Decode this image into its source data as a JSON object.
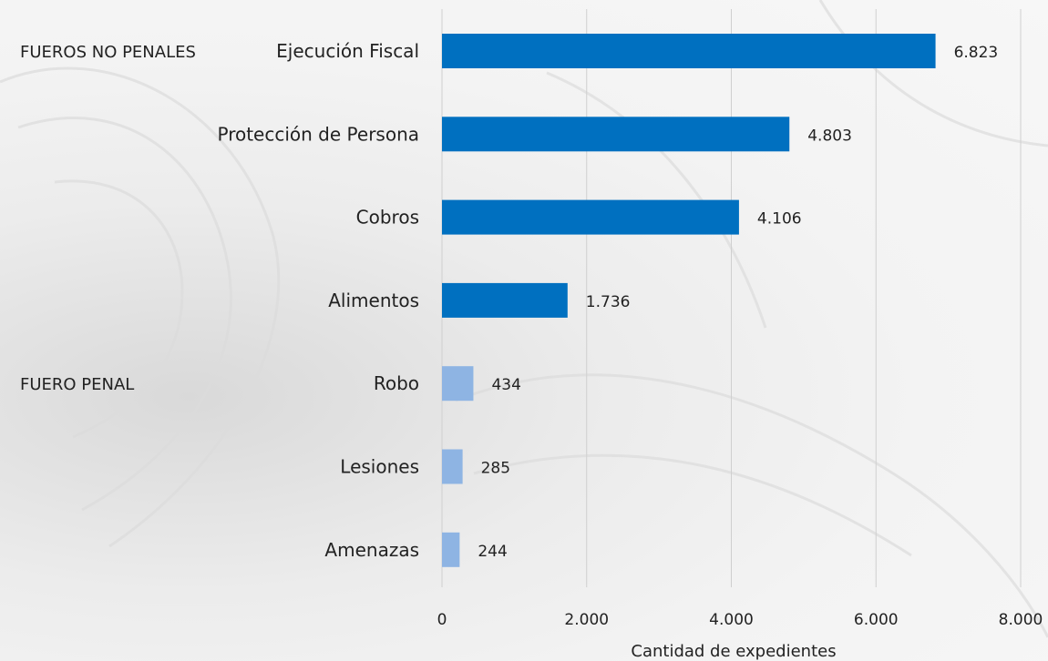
{
  "colors": {
    "no_penal": "#0070C0",
    "penal": "#8EB4E3",
    "grid": "#cfcfcf",
    "text": "#222222"
  },
  "chart_data": {
    "type": "bar",
    "orientation": "horizontal",
    "categories": [
      "Ejecución Fiscal",
      "Protección de Persona",
      "Cobros",
      "Alimentos",
      "Robo",
      "Lesiones",
      "Amenazas"
    ],
    "values": [
      6823,
      4803,
      4106,
      1736,
      434,
      285,
      244
    ],
    "value_labels": [
      "6.823",
      "4.803",
      "4.106",
      "1.736",
      "434",
      "285",
      "244"
    ],
    "groups": [
      {
        "label": "FUEROS NO PENALES",
        "categories": [
          "Ejecución Fiscal",
          "Protección de Persona",
          "Cobros",
          "Alimentos"
        ]
      },
      {
        "label": "FUERO PENAL",
        "categories": [
          "Robo",
          "Lesiones",
          "Amenazas"
        ]
      }
    ],
    "xlim": [
      0,
      8000
    ],
    "xticks": [
      0,
      2000,
      4000,
      6000,
      8000
    ],
    "xtick_labels": [
      "0",
      "2.000",
      "4.000",
      "6.000",
      "8.000"
    ],
    "xlabel": "Cantidad de expedientes",
    "ylabel": "",
    "grid": true,
    "legend": "none"
  }
}
